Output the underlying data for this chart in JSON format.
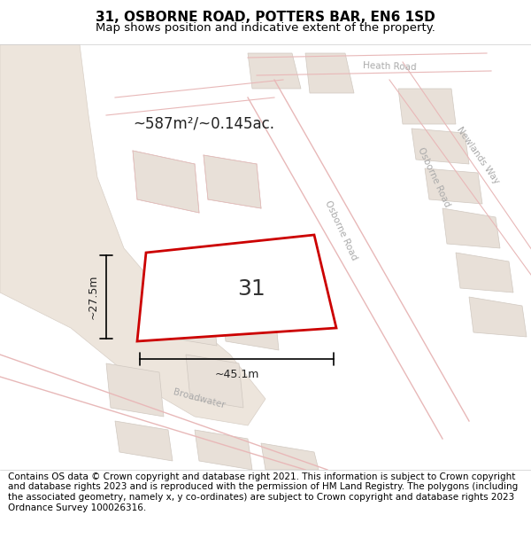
{
  "title": "31, OSBORNE ROAD, POTTERS BAR, EN6 1SD",
  "subtitle": "Map shows position and indicative extent of the property.",
  "footer": "Contains OS data © Crown copyright and database right 2021. This information is subject to Crown copyright and database rights 2023 and is reproduced with the permission of HM Land Registry. The polygons (including the associated geometry, namely x, y co-ordinates) are subject to Crown copyright and database rights 2023 Ordnance Survey 100026316.",
  "map_bg": "#f5f0eb",
  "road_bg": "#ffffff",
  "block_color": "#e8e0d8",
  "road_line_color": "#e8b8b8",
  "road_line_color2": "#d4a0a0",
  "plot_outline_color": "#cc0000",
  "plot_fill_color": "#ffffff",
  "plot_label": "31",
  "area_label": "~587m²/~0.145ac.",
  "width_label": "~45.1m",
  "height_label": "~27.5m",
  "footer_bg": "#ffffff",
  "title_fontsize": 11,
  "subtitle_fontsize": 9.5,
  "footer_fontsize": 7.5
}
